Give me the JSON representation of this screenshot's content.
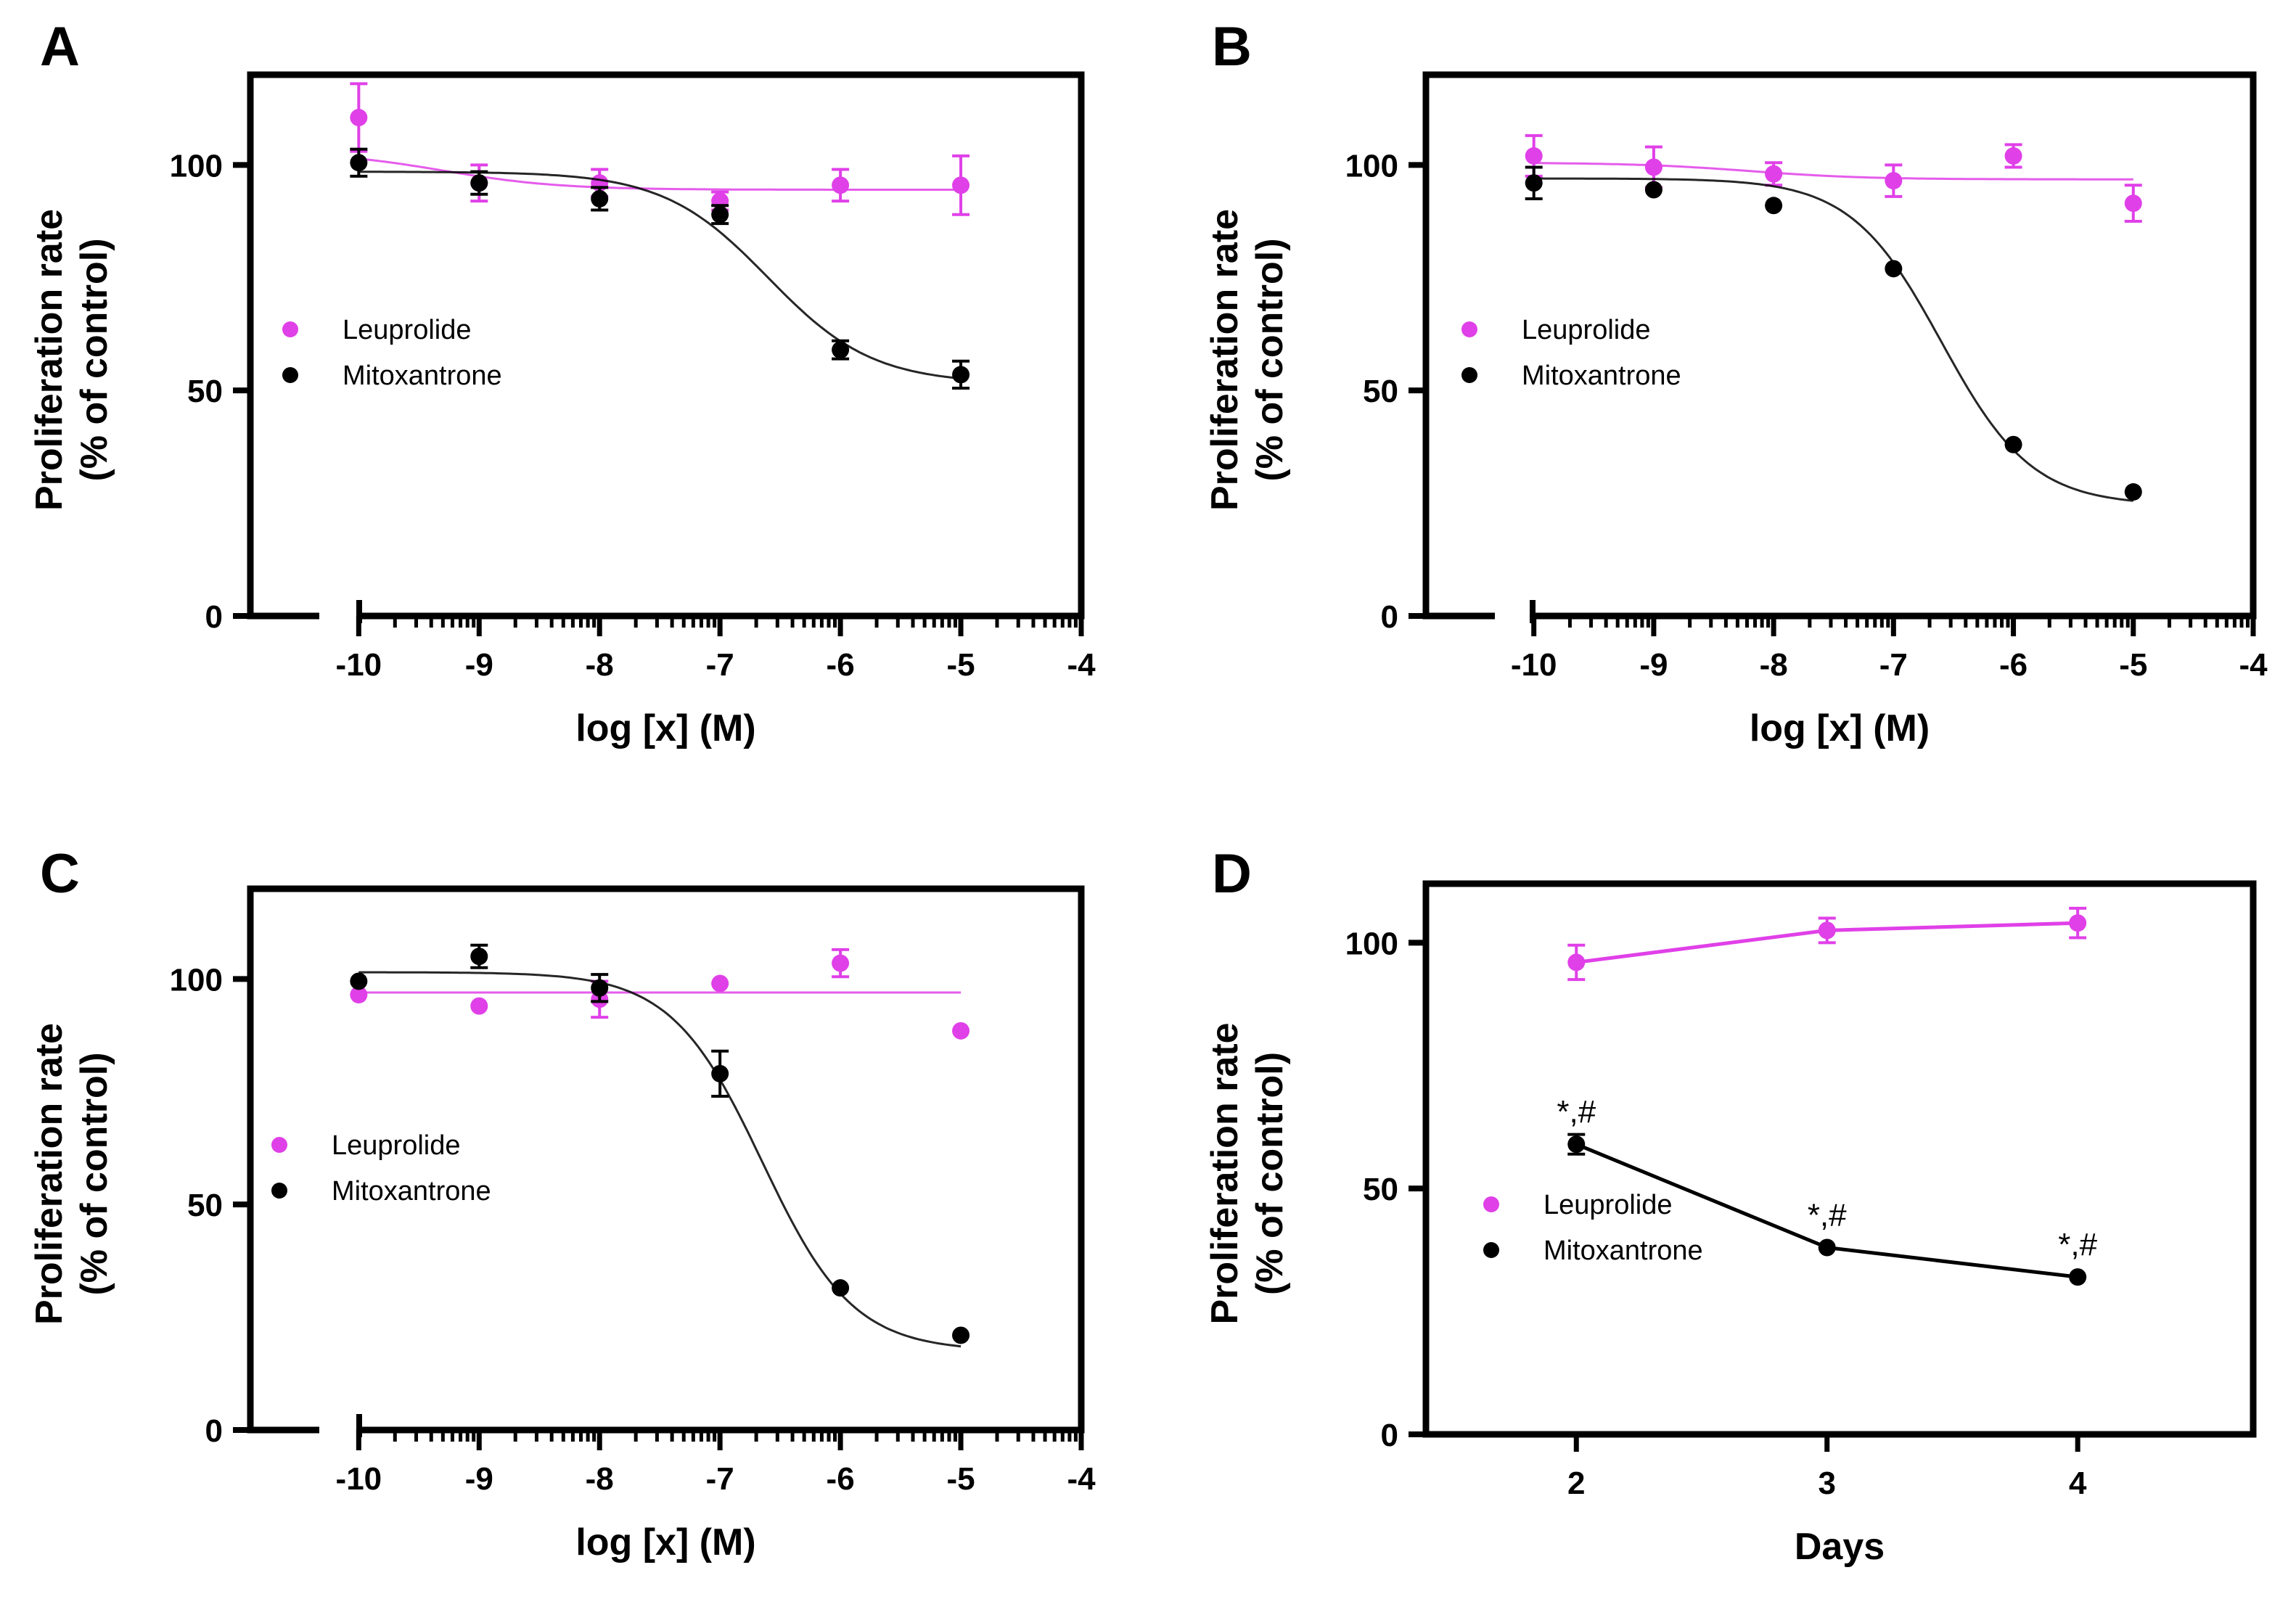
{
  "colors": {
    "leuprolide": "#e040e8",
    "mitoxantrone": "#000000",
    "axis": "#000000"
  },
  "chart_data": [
    {
      "panel": "A",
      "type": "scatter",
      "fit": "sigmoidal",
      "xlabel": "log [x] (M)",
      "ylabel": [
        "Proliferation rate",
        "(% of control)"
      ],
      "xlim": [
        -10.9,
        -4
      ],
      "xbreak": -10.5,
      "ylim": [
        0,
        120
      ],
      "xticks": [
        -10,
        -9,
        -8,
        -7,
        -6,
        -5,
        -4
      ],
      "xtick_labels": [
        "-10",
        "-9",
        "-8",
        "-7",
        "-6",
        "-5",
        "-4"
      ],
      "yticks": [
        0,
        50,
        100
      ],
      "ytick_labels": [
        "0",
        "50",
        "100"
      ],
      "legend_position": "middle-left",
      "series": [
        {
          "name": "Leuprolide",
          "color": "#e040e8",
          "x": [
            -10,
            -9,
            -8,
            -7,
            -6,
            -5
          ],
          "y": [
            110.5,
            96,
            96,
            92,
            95.5,
            95.5
          ],
          "err": [
            7.5,
            4,
            3,
            2,
            3.5,
            6.5
          ],
          "fit": {
            "top": 103,
            "bottom": 94.5,
            "logIC50": -9.3,
            "hill": 0.9
          }
        },
        {
          "name": "Mitoxantrone",
          "color": "#000000",
          "x": [
            -10,
            -9,
            -8,
            -7,
            -6,
            -5
          ],
          "y": [
            100.5,
            96,
            92.5,
            89,
            59,
            53.5
          ],
          "err": [
            3,
            2.5,
            2.5,
            2,
            2,
            3
          ],
          "fit": {
            "top": 98.5,
            "bottom": 51.5,
            "logIC50": -6.6,
            "hill": 1.0
          }
        }
      ]
    },
    {
      "panel": "B",
      "type": "scatter",
      "fit": "sigmoidal",
      "xlabel": "log [x] (M)",
      "ylabel": [
        "Proliferation rate",
        "(% of control)"
      ],
      "xlim": [
        -10.9,
        -4
      ],
      "xbreak": -10.5,
      "ylim": [
        0,
        120
      ],
      "xticks": [
        -10,
        -9,
        -8,
        -7,
        -6,
        -5,
        -4
      ],
      "xtick_labels": [
        "-10",
        "-9",
        "-8",
        "-7",
        "-6",
        "-5",
        "-4"
      ],
      "yticks": [
        0,
        50,
        100
      ],
      "ytick_labels": [
        "0",
        "50",
        "100"
      ],
      "legend_position": "middle-left",
      "series": [
        {
          "name": "Leuprolide",
          "color": "#e040e8",
          "x": [
            -10,
            -9,
            -8,
            -7,
            -6,
            -5
          ],
          "y": [
            102,
            99.5,
            98,
            96.5,
            102,
            91.5
          ],
          "err": [
            4.5,
            4.5,
            2.5,
            3.5,
            2.5,
            4
          ],
          "fit": {
            "top": 100.5,
            "bottom": 96.8,
            "logIC50": -8.2,
            "hill": 0.9
          }
        },
        {
          "name": "Mitoxantrone",
          "color": "#000000",
          "x": [
            -10,
            -9,
            -8,
            -7,
            -6,
            -5
          ],
          "y": [
            96,
            94.5,
            91,
            77,
            38,
            27.5
          ],
          "err": [
            3.5,
            0,
            0,
            0,
            0,
            0
          ],
          "fit": {
            "top": 97,
            "bottom": 24.5,
            "logIC50": -6.6,
            "hill": 1.15
          }
        }
      ]
    },
    {
      "panel": "C",
      "type": "scatter",
      "fit": "sigmoidal",
      "xlabel": "log [x] (M)",
      "ylabel": [
        "Proliferation rate",
        "(% of control)"
      ],
      "xlim": [
        -10.9,
        -4
      ],
      "xbreak": -10.5,
      "ylim": [
        0,
        120
      ],
      "xticks": [
        -10,
        -9,
        -8,
        -7,
        -6,
        -5,
        -4
      ],
      "xtick_labels": [
        "-10",
        "-9",
        "-8",
        "-7",
        "-6",
        "-5",
        "-4"
      ],
      "yticks": [
        0,
        50,
        100
      ],
      "ytick_labels": [
        "0",
        "50",
        "100"
      ],
      "legend_position": "middle-left",
      "series": [
        {
          "name": "Leuprolide",
          "color": "#e040e8",
          "x": [
            -10,
            -9,
            -8,
            -7,
            -6,
            -5
          ],
          "y": [
            96.5,
            94,
            95.5,
            99,
            103.5,
            88.5
          ],
          "err": [
            0,
            0,
            4,
            0,
            3,
            0
          ],
          "fit": {
            "top": 97,
            "bottom": 97,
            "logIC50": -7,
            "hill": 1
          }
        },
        {
          "name": "Mitoxantrone",
          "color": "#000000",
          "x": [
            -10,
            -9,
            -8,
            -7,
            -6,
            -5
          ],
          "y": [
            99.5,
            105,
            98,
            79,
            31.5,
            21
          ],
          "err": [
            0,
            2.5,
            3,
            5,
            0,
            0
          ],
          "fit": {
            "top": 101.5,
            "bottom": 17.5,
            "logIC50": -6.65,
            "hill": 1.15
          }
        }
      ]
    },
    {
      "panel": "D",
      "type": "line",
      "xlabel": "Days",
      "ylabel": [
        "Proliferation rate",
        "(% of control)"
      ],
      "xlim": [
        1.4,
        4.7
      ],
      "ylim": [
        0,
        112
      ],
      "xticks": [
        2,
        3,
        4
      ],
      "xtick_labels": [
        "2",
        "3",
        "4"
      ],
      "yticks": [
        0,
        50,
        100
      ],
      "ytick_labels": [
        "0",
        "50",
        "100"
      ],
      "legend_position": "lower-left",
      "series": [
        {
          "name": "Leuprolide",
          "color": "#e040e8",
          "x": [
            2,
            3,
            4
          ],
          "y": [
            96,
            102.5,
            104
          ],
          "err": [
            3.5,
            2.5,
            3
          ]
        },
        {
          "name": "Mitoxantrone",
          "color": "#000000",
          "x": [
            2,
            3,
            4
          ],
          "y": [
            59,
            38,
            32
          ],
          "err": [
            2,
            0,
            0
          ],
          "annotations": [
            "*,#",
            "*,#",
            "*,#"
          ]
        }
      ]
    }
  ]
}
